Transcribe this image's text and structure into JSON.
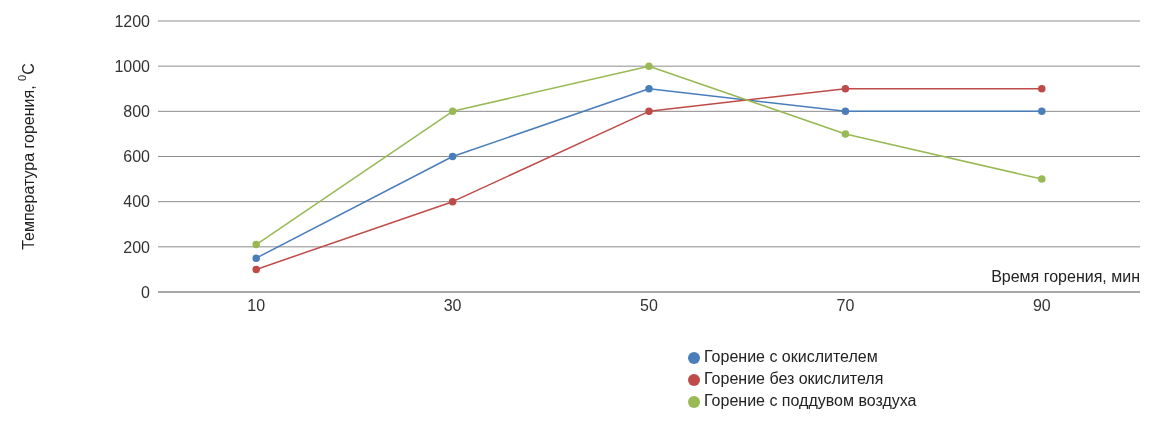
{
  "chart_data": {
    "type": "line",
    "xlabel": "Время горения, мин",
    "ylabel": "Температура горения, $^{0}$C",
    "categories": [
      "10",
      "30",
      "50",
      "70",
      "90"
    ],
    "series": [
      {
        "name": "Горение с окислителем",
        "color": "#4a7ebb",
        "values": [
          150,
          600,
          900,
          800,
          800
        ]
      },
      {
        "name": "Горение без окислителя",
        "color": "#be4b48",
        "values": [
          100,
          400,
          800,
          900,
          900
        ]
      },
      {
        "name": "Горение с поддувом воздуха",
        "color": "#98b954",
        "values": [
          210,
          800,
          1000,
          700,
          500
        ]
      }
    ],
    "ylim": [
      0,
      1200
    ],
    "yticks": [
      0,
      200,
      400,
      600,
      800,
      1000,
      1200
    ],
    "grid": "y",
    "legend": "bottom",
    "marker": "circle",
    "line_style": "solid"
  }
}
